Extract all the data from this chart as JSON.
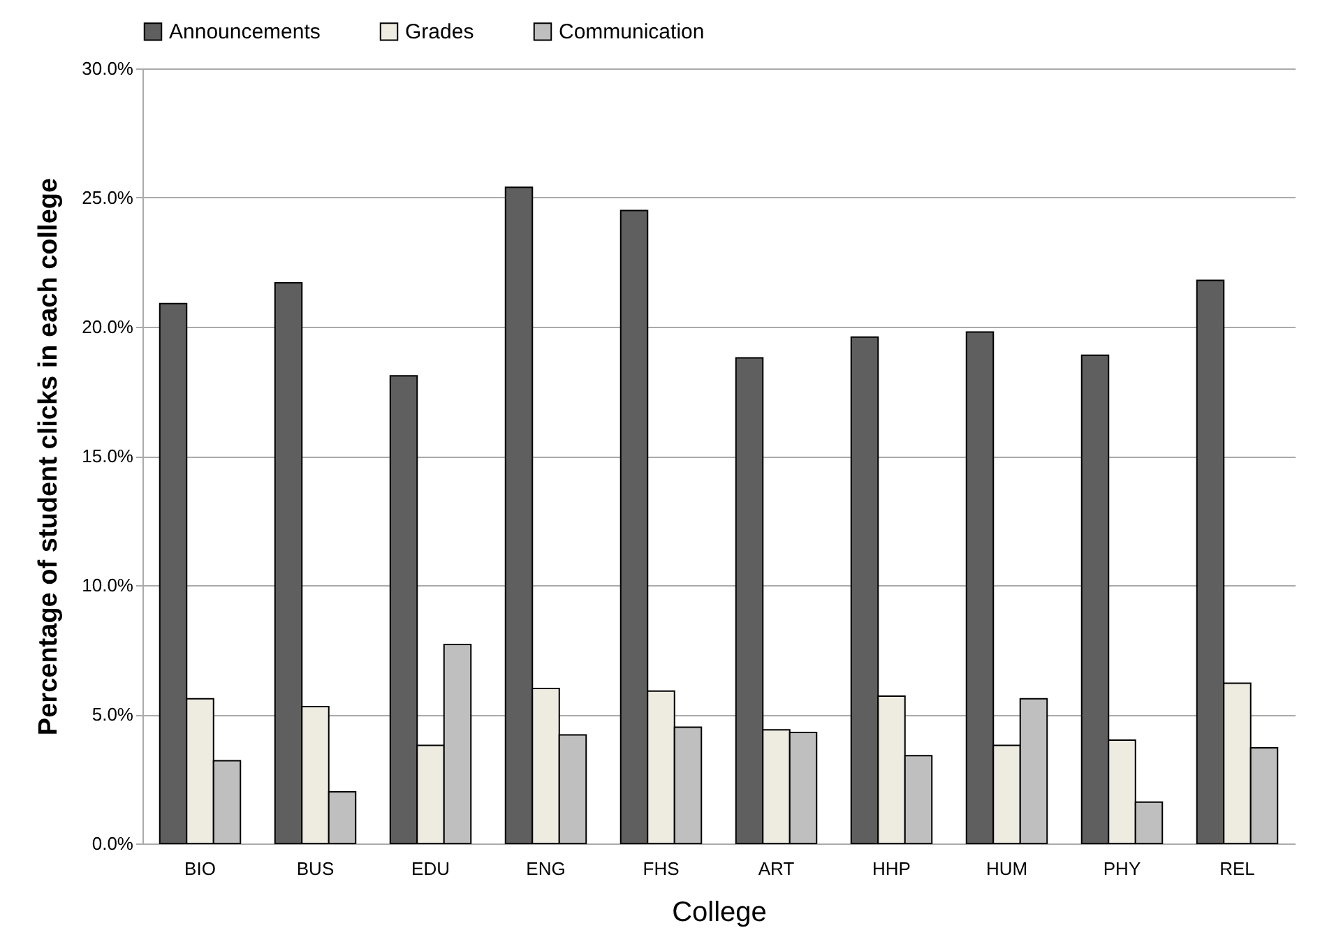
{
  "chart_data": {
    "type": "bar",
    "xlabel": "College",
    "ylabel": "Percentage of student clicks in each college",
    "categories": [
      "BIO",
      "BUS",
      "EDU",
      "ENG",
      "FHS",
      "ART",
      "HHP",
      "HUM",
      "PHY",
      "REL"
    ],
    "series": [
      {
        "name": "Announcements",
        "color": "#5f5f5f",
        "values": [
          20.9,
          21.7,
          18.1,
          25.4,
          24.5,
          18.8,
          19.6,
          19.8,
          18.9,
          21.8
        ]
      },
      {
        "name": "Grades",
        "color": "#eeebe0",
        "values": [
          5.6,
          5.3,
          3.8,
          6.0,
          5.9,
          4.4,
          5.7,
          3.8,
          4.0,
          6.2
        ]
      },
      {
        "name": "Communication",
        "color": "#bfbfbf",
        "values": [
          3.2,
          2.0,
          7.7,
          4.2,
          4.5,
          4.3,
          3.4,
          5.6,
          1.6,
          3.7
        ]
      }
    ],
    "ylim": [
      0,
      30
    ],
    "yticks": [
      {
        "value": 0,
        "label": "0.0%"
      },
      {
        "value": 5,
        "label": "5.0%"
      },
      {
        "value": 10,
        "label": "10.0%"
      },
      {
        "value": 15,
        "label": "15.0%"
      },
      {
        "value": 20,
        "label": "20.0%"
      },
      {
        "value": 25,
        "label": "25.0%"
      },
      {
        "value": 30,
        "label": "30.0%"
      }
    ],
    "grid": "y",
    "legend": "top"
  }
}
